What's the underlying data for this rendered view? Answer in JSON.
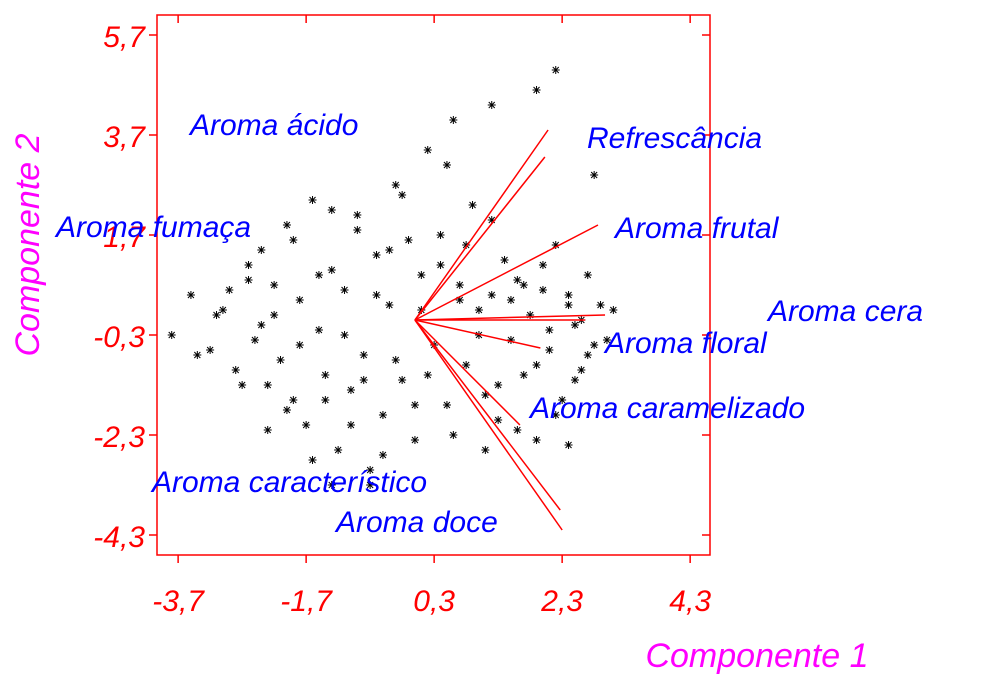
{
  "chart_data": {
    "type": "scatter",
    "x_label": "Componente 1",
    "y_label": "Componente 2",
    "color": "#000000",
    "vector_color": "#ff0000",
    "frame_color": "#ff0000",
    "xlim": [
      -4.03,
      4.61
    ],
    "ylim": [
      -4.7,
      6.1
    ],
    "xticks": [
      {
        "value": -3.7,
        "label": "-3,7"
      },
      {
        "value": -1.7,
        "label": "-1,7"
      },
      {
        "value": 0.3,
        "label": "0,3"
      },
      {
        "value": 2.3,
        "label": "2,3"
      },
      {
        "value": 4.3,
        "label": "4,3"
      }
    ],
    "yticks": [
      {
        "value": 5.7,
        "label": "5,7"
      },
      {
        "value": 3.7,
        "label": "3,7"
      },
      {
        "value": 1.7,
        "label": "1,7"
      },
      {
        "value": -0.3,
        "label": "-0,3"
      },
      {
        "value": -2.3,
        "label": "-2,3"
      },
      {
        "value": -4.3,
        "label": "-4,3"
      }
    ],
    "x": [
      -3.8,
      -3.5,
      -3.2,
      -3.0,
      -2.8,
      -2.6,
      -2.5,
      -2.4,
      -2.3,
      -2.2,
      -2.1,
      -2.0,
      -1.9,
      -1.8,
      -1.7,
      -1.6,
      -1.5,
      -1.4,
      -1.3,
      -1.2,
      -1.1,
      -1.0,
      -0.9,
      -0.8,
      -0.7,
      -0.6,
      -0.5,
      -0.4,
      -0.3,
      -0.2,
      -0.1,
      0.0,
      0.1,
      0.2,
      0.3,
      0.4,
      0.5,
      0.6,
      0.7,
      0.8,
      0.9,
      1.0,
      1.1,
      1.2,
      1.3,
      1.4,
      1.5,
      1.6,
      1.7,
      1.8,
      1.9,
      2.0,
      2.1,
      2.2,
      2.3,
      2.4,
      2.5,
      2.6,
      2.7,
      2.8,
      -3.4,
      -3.1,
      -2.9,
      -2.7,
      -2.6,
      -2.4,
      -2.3,
      -2.2,
      -2.0,
      -1.9,
      -1.8,
      -1.6,
      -1.5,
      -1.4,
      -1.3,
      -1.1,
      -1.0,
      -0.9,
      -0.8,
      -0.6,
      -0.5,
      -0.4,
      -0.3,
      -0.2,
      0.0,
      0.1,
      0.2,
      0.4,
      0.5,
      0.6,
      0.7,
      0.8,
      1.0,
      1.1,
      1.2,
      1.3,
      1.5,
      1.6,
      1.7,
      1.9,
      2.0,
      2.1,
      2.2,
      2.4,
      2.5,
      2.6,
      2.7,
      2.9,
      3.0,
      3.1,
      2.2,
      1.9,
      1.2,
      2.8,
      -1.3,
      -0.7,
      2.4
    ],
    "y": [
      -0.3,
      0.5,
      -0.6,
      0.2,
      -1.0,
      0.8,
      -0.4,
      1.4,
      -1.3,
      0.1,
      -0.8,
      1.9,
      -1.6,
      0.4,
      -2.1,
      2.4,
      -0.2,
      -1.1,
      1.0,
      -2.6,
      0.6,
      -1.4,
      2.1,
      -0.7,
      -3.0,
      1.3,
      -1.9,
      0.3,
      2.7,
      -1.2,
      1.6,
      -2.4,
      0.9,
      3.4,
      -0.5,
      1.1,
      -1.7,
      4.0,
      0.7,
      -0.9,
      2.3,
      0.2,
      -1.5,
      0.5,
      -2.0,
      1.2,
      -0.4,
      0.8,
      -1.1,
      0.1,
      -2.4,
      0.6,
      -0.6,
      1.5,
      -1.6,
      0.3,
      -0.1,
      -1.0,
      0.9,
      -0.5,
      -0.7,
      0.1,
      0.6,
      -1.3,
      1.1,
      -0.1,
      -2.2,
      0.7,
      -1.8,
      1.6,
      -0.5,
      -2.8,
      0.9,
      -1.6,
      2.2,
      -0.3,
      -2.1,
      1.8,
      -1.2,
      0.5,
      -2.7,
      1.4,
      -0.8,
      2.5,
      -1.7,
      0.2,
      -1.1,
      1.7,
      3.1,
      -2.3,
      0.4,
      1.5,
      -0.3,
      -2.6,
      2.0,
      -1.3,
      0.4,
      -2.2,
      0.7,
      -0.9,
      1.1,
      -0.2,
      -1.9,
      0.5,
      -1.2,
      0.0,
      -0.7,
      0.3,
      -0.4,
      0.2,
      5.0,
      4.6,
      4.3,
      2.9,
      -3.3,
      -3.3,
      -2.5
    ],
    "vectors": [
      {
        "x": 2.08,
        "y": 3.8
      },
      {
        "x": 2.03,
        "y": 3.26
      },
      {
        "x": 2.86,
        "y": 1.9
      },
      {
        "x": 2.97,
        "y": 0.1
      },
      {
        "x": 2.66,
        "y": 0.0
      },
      {
        "x": 1.96,
        "y": -0.56
      },
      {
        "x": 1.64,
        "y": -2.1
      },
      {
        "x": 2.27,
        "y": -3.8
      },
      {
        "x": 2.3,
        "y": -4.2
      }
    ],
    "annotations": [
      "Aroma ácido",
      "Refrescância",
      "Aroma  fumaça",
      "Aroma frutal",
      "Aroma cera",
      "Aroma floral",
      "Aroma caramelizado",
      "Aroma característico",
      "Aroma doce"
    ]
  }
}
